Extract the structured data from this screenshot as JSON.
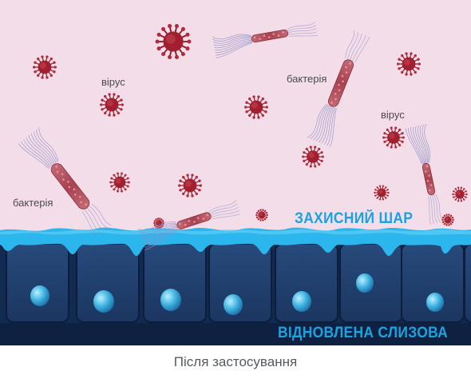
{
  "labels": {
    "virus_left": "вірус",
    "virus_right": "вірус",
    "bacteria_top": "бактерія",
    "bacteria_left": "бактерія",
    "protective_layer": "ЗАХИСНИЙ ШАР",
    "restored_mucosa": "ВІДНОВЛЕНА СЛИЗОВА",
    "caption": "Після застосування"
  },
  "colors": {
    "background": "#f3dde8",
    "protective_layer": "#2bb6ee",
    "cells": "#1d3a66",
    "virus": "#a11f2e",
    "bacteria": "#b0505e",
    "label_accent": "#1aa3e0"
  }
}
